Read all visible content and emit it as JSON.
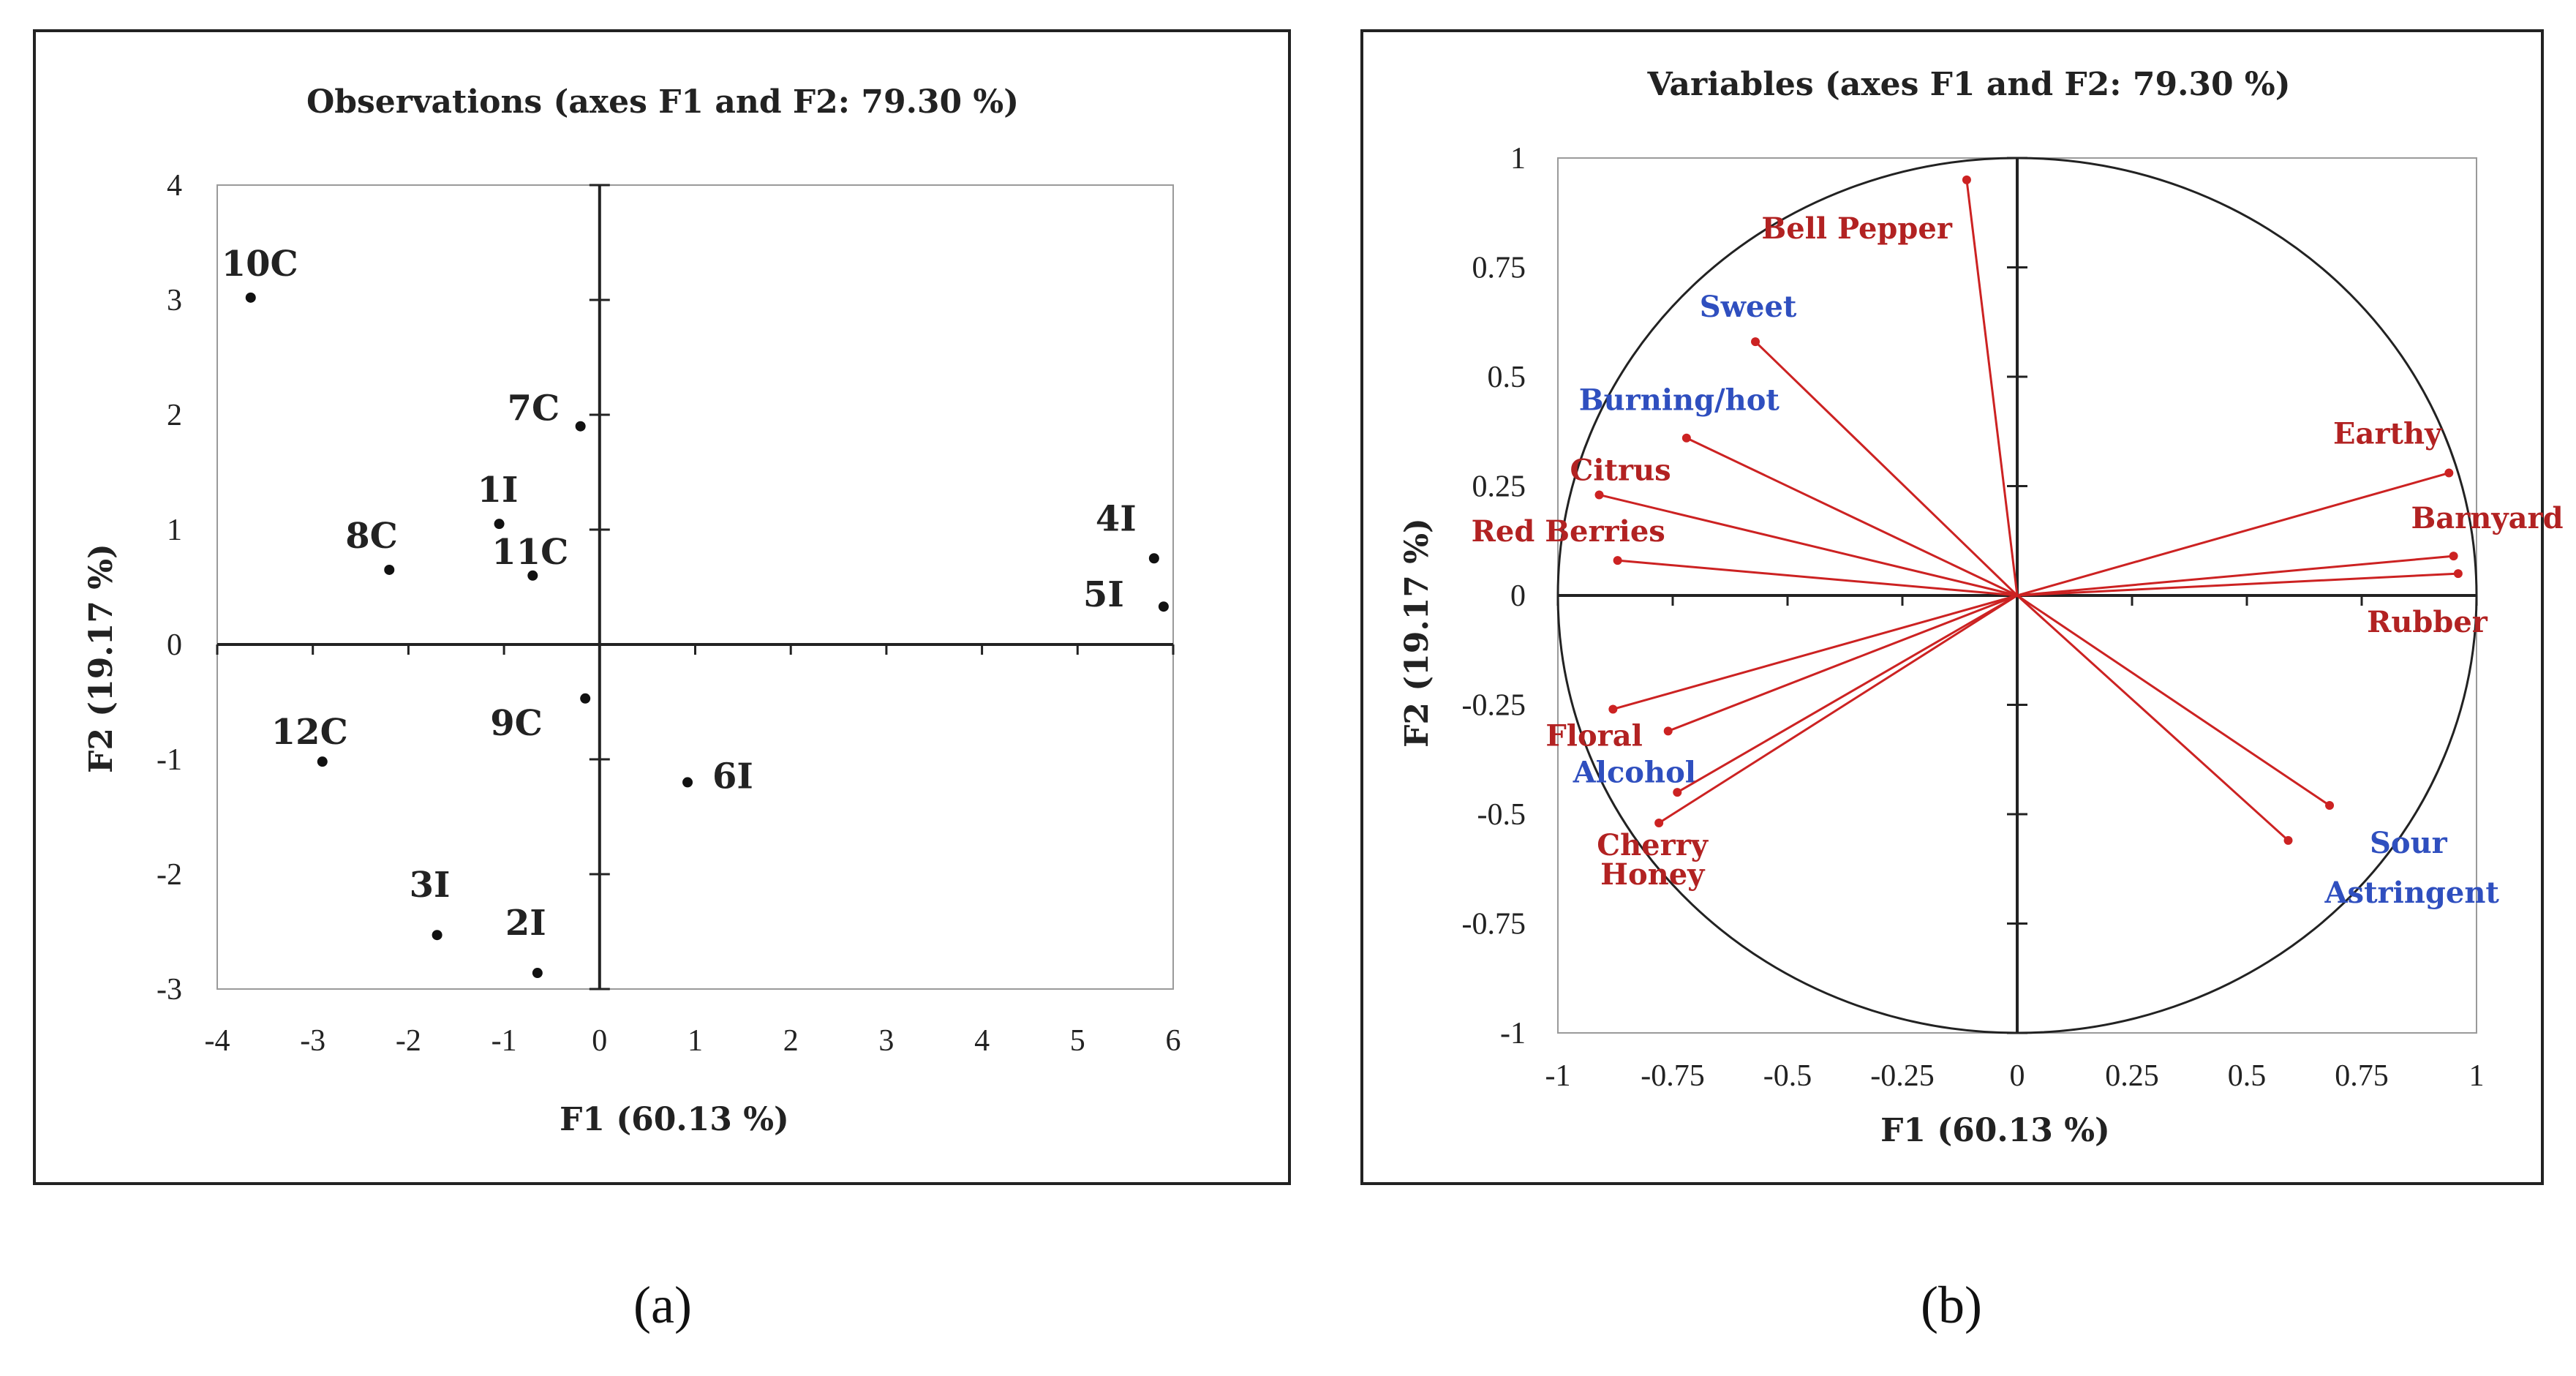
{
  "chart_data": [
    {
      "type": "scatter",
      "title": "Observations (axes F1 and F2: 79.30 %)",
      "xlabel": "F1 (60.13 %)",
      "ylabel": "F2 (19.17 %)",
      "xlim": [
        -4,
        6
      ],
      "ylim": [
        -3,
        4
      ],
      "xticks": [
        "-4",
        "-3",
        "-2",
        "-1",
        "0",
        "1",
        "2",
        "3",
        "4",
        "5",
        "6"
      ],
      "yticks": [
        "-3",
        "-2",
        "-1",
        "0",
        "1",
        "2",
        "3",
        "4"
      ],
      "points": [
        {
          "label": "10C",
          "x": -3.65,
          "y": 3.02
        },
        {
          "label": "7C",
          "x": -0.2,
          "y": 1.9
        },
        {
          "label": "1I",
          "x": -1.05,
          "y": 1.05
        },
        {
          "label": "8C",
          "x": -2.2,
          "y": 0.65
        },
        {
          "label": "11C",
          "x": -0.7,
          "y": 0.6
        },
        {
          "label": "4I",
          "x": 5.8,
          "y": 0.75
        },
        {
          "label": "5I",
          "x": 5.9,
          "y": 0.33
        },
        {
          "label": "9C",
          "x": -0.15,
          "y": -0.47
        },
        {
          "label": "12C",
          "x": -2.9,
          "y": -1.02
        },
        {
          "label": "6I",
          "x": 0.92,
          "y": -1.2
        },
        {
          "label": "3I",
          "x": -1.7,
          "y": -2.53
        },
        {
          "label": "2I",
          "x": -0.65,
          "y": -2.86
        }
      ],
      "caption": "(a)"
    },
    {
      "type": "scatter",
      "subtype": "correlation-circle",
      "title": "Variables (axes F1 and F2: 79.30 %)",
      "xlabel": "F1 (60.13 %)",
      "ylabel": "F2 (19.17 %)",
      "xlim": [
        -1,
        1
      ],
      "ylim": [
        -1,
        1
      ],
      "xticks": [
        "-1",
        "-0.75",
        "-0.5",
        "-0.25",
        "0",
        "0.25",
        "0.5",
        "0.75",
        "1"
      ],
      "yticks": [
        "-1",
        "-0.75",
        "-0.5",
        "-0.25",
        "0",
        "0.25",
        "0.5",
        "0.75",
        "1"
      ],
      "variables": [
        {
          "label": "Bell Pepper",
          "x": -0.11,
          "y": 0.95,
          "color": "#b22222"
        },
        {
          "label": "Sweet",
          "x": -0.57,
          "y": 0.58,
          "color": "#2f4fbf"
        },
        {
          "label": "Burning/hot",
          "x": -0.72,
          "y": 0.36,
          "color": "#2f4fbf"
        },
        {
          "label": "Citrus",
          "x": -0.91,
          "y": 0.23,
          "color": "#b22222"
        },
        {
          "label": "Red Berries",
          "x": -0.87,
          "y": 0.08,
          "color": "#b22222"
        },
        {
          "label": "Earthy",
          "x": 0.94,
          "y": 0.28,
          "color": "#b22222"
        },
        {
          "label": "Barnyard",
          "x": 0.95,
          "y": 0.09,
          "color": "#b22222"
        },
        {
          "label": "Rubber",
          "x": 0.96,
          "y": 0.05,
          "color": "#b22222"
        },
        {
          "label": "Floral",
          "x": -0.88,
          "y": -0.26,
          "color": "#b22222"
        },
        {
          "label": "Alcohol",
          "x": -0.76,
          "y": -0.31,
          "color": "#2f4fbf"
        },
        {
          "label": "Cherry",
          "x": -0.74,
          "y": -0.45,
          "color": "#b22222"
        },
        {
          "label": "Honey",
          "x": -0.78,
          "y": -0.52,
          "color": "#b22222"
        },
        {
          "label": "Sour",
          "x": 0.68,
          "y": -0.48,
          "color": "#2f4fbf"
        },
        {
          "label": "Astringent",
          "x": 0.59,
          "y": -0.56,
          "color": "#2f4fbf"
        }
      ],
      "caption": "(b)"
    }
  ],
  "colors": {
    "line": "#cc2222",
    "blue_label": "#2f4fbf",
    "red_label": "#b22222",
    "axis": "#222222"
  }
}
